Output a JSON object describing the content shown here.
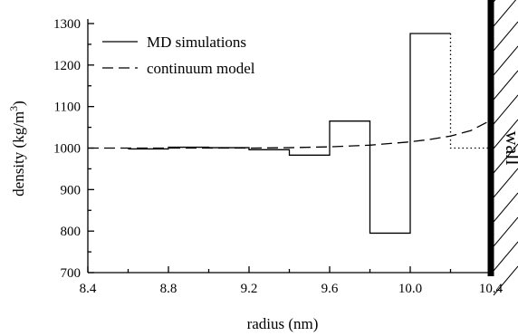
{
  "chart_data": {
    "type": "line",
    "xlabel": "radius (nm)",
    "ylabel": "density (kg/m",
    "ylabel_superscript": "3",
    "ylabel_suffix": ")",
    "xlim": [
      8.4,
      10.4
    ],
    "ylim": [
      700,
      1300
    ],
    "x_ticks": [
      "8.4",
      "8.8",
      "9.2",
      "9.6",
      "10.0",
      "10.4"
    ],
    "y_ticks": [
      "700",
      "800",
      "900",
      "1000",
      "1100",
      "1200",
      "1300"
    ],
    "legend_position": "top-left",
    "grid": false,
    "wall_label": "wall",
    "wall_x": 10.4,
    "series": [
      {
        "name": "MD simulations",
        "style": "solid-step",
        "bins": [
          {
            "x0": 8.6,
            "x1": 8.8,
            "y": 998
          },
          {
            "x0": 8.8,
            "x1": 9.0,
            "y": 1002
          },
          {
            "x0": 9.0,
            "x1": 9.2,
            "y": 1001
          },
          {
            "x0": 9.2,
            "x1": 9.4,
            "y": 996
          },
          {
            "x0": 9.4,
            "x1": 9.6,
            "y": 983
          },
          {
            "x0": 9.6,
            "x1": 9.8,
            "y": 1065
          },
          {
            "x0": 9.8,
            "x1": 10.0,
            "y": 795
          },
          {
            "x0": 10.0,
            "x1": 10.2,
            "y": 1276
          }
        ]
      },
      {
        "name": "continuum model",
        "style": "dashed",
        "x": [
          8.4,
          8.8,
          9.2,
          9.4,
          9.6,
          9.8,
          10.0,
          10.1,
          10.2,
          10.3,
          10.4
        ],
        "y": [
          1000,
          1000,
          1000,
          1001,
          1003,
          1007,
          1015,
          1021,
          1029,
          1042,
          1067
        ]
      },
      {
        "name": "",
        "style": "dotted",
        "x": [
          10.2,
          10.2,
          10.4
        ],
        "y": [
          1276,
          1000,
          1000
        ]
      }
    ]
  }
}
